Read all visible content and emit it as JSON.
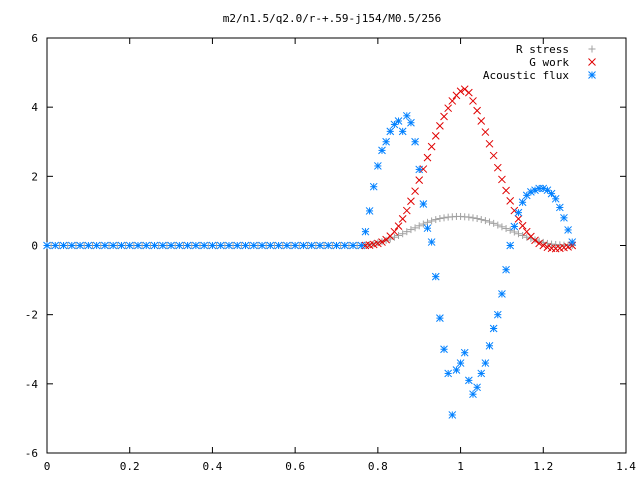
{
  "chart_data": {
    "type": "scatter",
    "title": "m2/n1.5/q2.0/r-+.59-j154/M0.5/256",
    "xlabel": "",
    "ylabel": "",
    "xlim": [
      0,
      1.4
    ],
    "ylim": [
      -6,
      6
    ],
    "grid": false,
    "legend_position": "top-right",
    "x_ticks": [
      0,
      0.2,
      0.4,
      0.6,
      0.8,
      1,
      1.2,
      1.4
    ],
    "x_tick_labels": [
      "0",
      "0.2",
      "0.4",
      "0.6",
      "0.8",
      "1",
      "1.2",
      "1.4"
    ],
    "y_ticks": [
      -6,
      -4,
      -2,
      0,
      2,
      4,
      6
    ],
    "y_tick_labels": [
      "-6",
      "-4",
      "-2",
      "0",
      "2",
      "4",
      "6"
    ],
    "series": [
      {
        "name": "R stress",
        "marker": "plus",
        "color": "#a0a0a0",
        "x": [
          0.01,
          0.03,
          0.05,
          0.07,
          0.09,
          0.11,
          0.13,
          0.15,
          0.17,
          0.19,
          0.21,
          0.23,
          0.25,
          0.27,
          0.29,
          0.31,
          0.33,
          0.35,
          0.37,
          0.39,
          0.41,
          0.43,
          0.45,
          0.47,
          0.49,
          0.51,
          0.53,
          0.55,
          0.57,
          0.59,
          0.61,
          0.63,
          0.65,
          0.67,
          0.69,
          0.71,
          0.73,
          0.75,
          0.77,
          0.78,
          0.79,
          0.8,
          0.81,
          0.82,
          0.83,
          0.84,
          0.85,
          0.86,
          0.87,
          0.88,
          0.89,
          0.9,
          0.91,
          0.92,
          0.93,
          0.94,
          0.95,
          0.96,
          0.97,
          0.98,
          0.99,
          1.0,
          1.01,
          1.02,
          1.03,
          1.04,
          1.05,
          1.06,
          1.07,
          1.08,
          1.09,
          1.1,
          1.11,
          1.12,
          1.13,
          1.14,
          1.15,
          1.16,
          1.17,
          1.18,
          1.19,
          1.2,
          1.21,
          1.22,
          1.23,
          1.24,
          1.25,
          1.26,
          1.27
        ],
        "y": [
          0,
          0,
          0,
          0,
          0,
          0,
          0,
          0,
          0,
          0,
          0,
          0,
          0,
          0,
          0,
          0,
          0,
          0,
          0,
          0,
          0,
          0,
          0,
          0,
          0,
          0,
          0,
          0,
          0,
          0,
          0,
          0,
          0,
          0,
          0,
          0,
          0,
          0,
          0.01,
          0.03,
          0.05,
          0.08,
          0.11,
          0.15,
          0.19,
          0.24,
          0.29,
          0.34,
          0.4,
          0.46,
          0.51,
          0.57,
          0.62,
          0.67,
          0.71,
          0.75,
          0.78,
          0.8,
          0.82,
          0.83,
          0.84,
          0.84,
          0.83,
          0.82,
          0.8,
          0.78,
          0.75,
          0.72,
          0.68,
          0.64,
          0.59,
          0.54,
          0.49,
          0.44,
          0.39,
          0.34,
          0.29,
          0.24,
          0.2,
          0.16,
          0.12,
          0.09,
          0.06,
          0.04,
          0.03,
          0.02,
          0.01,
          0.01,
          0
        ]
      },
      {
        "name": "G work",
        "marker": "cross",
        "color": "#e00000",
        "x": [
          0.77,
          0.78,
          0.79,
          0.8,
          0.81,
          0.82,
          0.83,
          0.84,
          0.85,
          0.86,
          0.87,
          0.88,
          0.89,
          0.9,
          0.91,
          0.92,
          0.93,
          0.94,
          0.95,
          0.96,
          0.97,
          0.98,
          0.99,
          1.0,
          1.01,
          1.02,
          1.03,
          1.04,
          1.05,
          1.06,
          1.07,
          1.08,
          1.09,
          1.1,
          1.11,
          1.12,
          1.13,
          1.14,
          1.15,
          1.16,
          1.17,
          1.18,
          1.19,
          1.2,
          1.21,
          1.22,
          1.23,
          1.24,
          1.25,
          1.26,
          1.27
        ],
        "y": [
          0,
          0.01,
          0.03,
          0.06,
          0.1,
          0.17,
          0.27,
          0.4,
          0.56,
          0.77,
          1.01,
          1.28,
          1.57,
          1.89,
          2.21,
          2.54,
          2.86,
          3.17,
          3.46,
          3.73,
          3.97,
          4.18,
          4.34,
          4.46,
          4.52,
          4.42,
          4.18,
          3.9,
          3.6,
          3.28,
          2.94,
          2.6,
          2.25,
          1.91,
          1.59,
          1.29,
          1.01,
          0.77,
          0.57,
          0.4,
          0.26,
          0.15,
          0.06,
          0,
          -0.05,
          -0.08,
          -0.09,
          -0.08,
          -0.06,
          -0.04,
          0
        ]
      },
      {
        "name": "Acoustic flux",
        "marker": "star",
        "color": "#0080ff",
        "x": [
          0.0,
          0.02,
          0.04,
          0.06,
          0.08,
          0.1,
          0.12,
          0.14,
          0.16,
          0.18,
          0.2,
          0.22,
          0.24,
          0.26,
          0.28,
          0.3,
          0.32,
          0.34,
          0.36,
          0.38,
          0.4,
          0.42,
          0.44,
          0.46,
          0.48,
          0.5,
          0.52,
          0.54,
          0.56,
          0.58,
          0.6,
          0.62,
          0.64,
          0.66,
          0.68,
          0.7,
          0.72,
          0.74,
          0.76,
          0.77,
          0.78,
          0.79,
          0.8,
          0.81,
          0.82,
          0.83,
          0.84,
          0.85,
          0.86,
          0.87,
          0.88,
          0.89,
          0.9,
          0.91,
          0.92,
          0.93,
          0.94,
          0.95,
          0.96,
          0.97,
          0.98,
          0.99,
          1.0,
          1.01,
          1.02,
          1.03,
          1.04,
          1.05,
          1.06,
          1.07,
          1.08,
          1.09,
          1.1,
          1.11,
          1.12,
          1.13,
          1.14,
          1.15,
          1.16,
          1.17,
          1.18,
          1.19,
          1.2,
          1.21,
          1.22,
          1.23,
          1.24,
          1.25,
          1.26,
          1.27
        ],
        "y": [
          0,
          0,
          0,
          0,
          0,
          0,
          0,
          0,
          0,
          0,
          0,
          0,
          0,
          0,
          0,
          0,
          0,
          0,
          0,
          0,
          0,
          0,
          0,
          0,
          0,
          0,
          0,
          0,
          0,
          0,
          0,
          0,
          0,
          0,
          0,
          0,
          0,
          0,
          0,
          0.4,
          1.0,
          1.7,
          2.3,
          2.75,
          3.0,
          3.3,
          3.5,
          3.6,
          3.3,
          3.75,
          3.55,
          3.0,
          2.2,
          1.2,
          0.5,
          0.1,
          -0.9,
          -2.1,
          -3.0,
          -3.7,
          -4.9,
          -3.6,
          -3.4,
          -3.1,
          -3.9,
          -4.3,
          -4.1,
          -3.7,
          -3.4,
          -2.9,
          -2.4,
          -2.0,
          -1.4,
          -0.7,
          0.0,
          0.55,
          0.95,
          1.25,
          1.45,
          1.55,
          1.6,
          1.65,
          1.65,
          1.6,
          1.5,
          1.35,
          1.1,
          0.8,
          0.45,
          0.1
        ]
      }
    ]
  }
}
